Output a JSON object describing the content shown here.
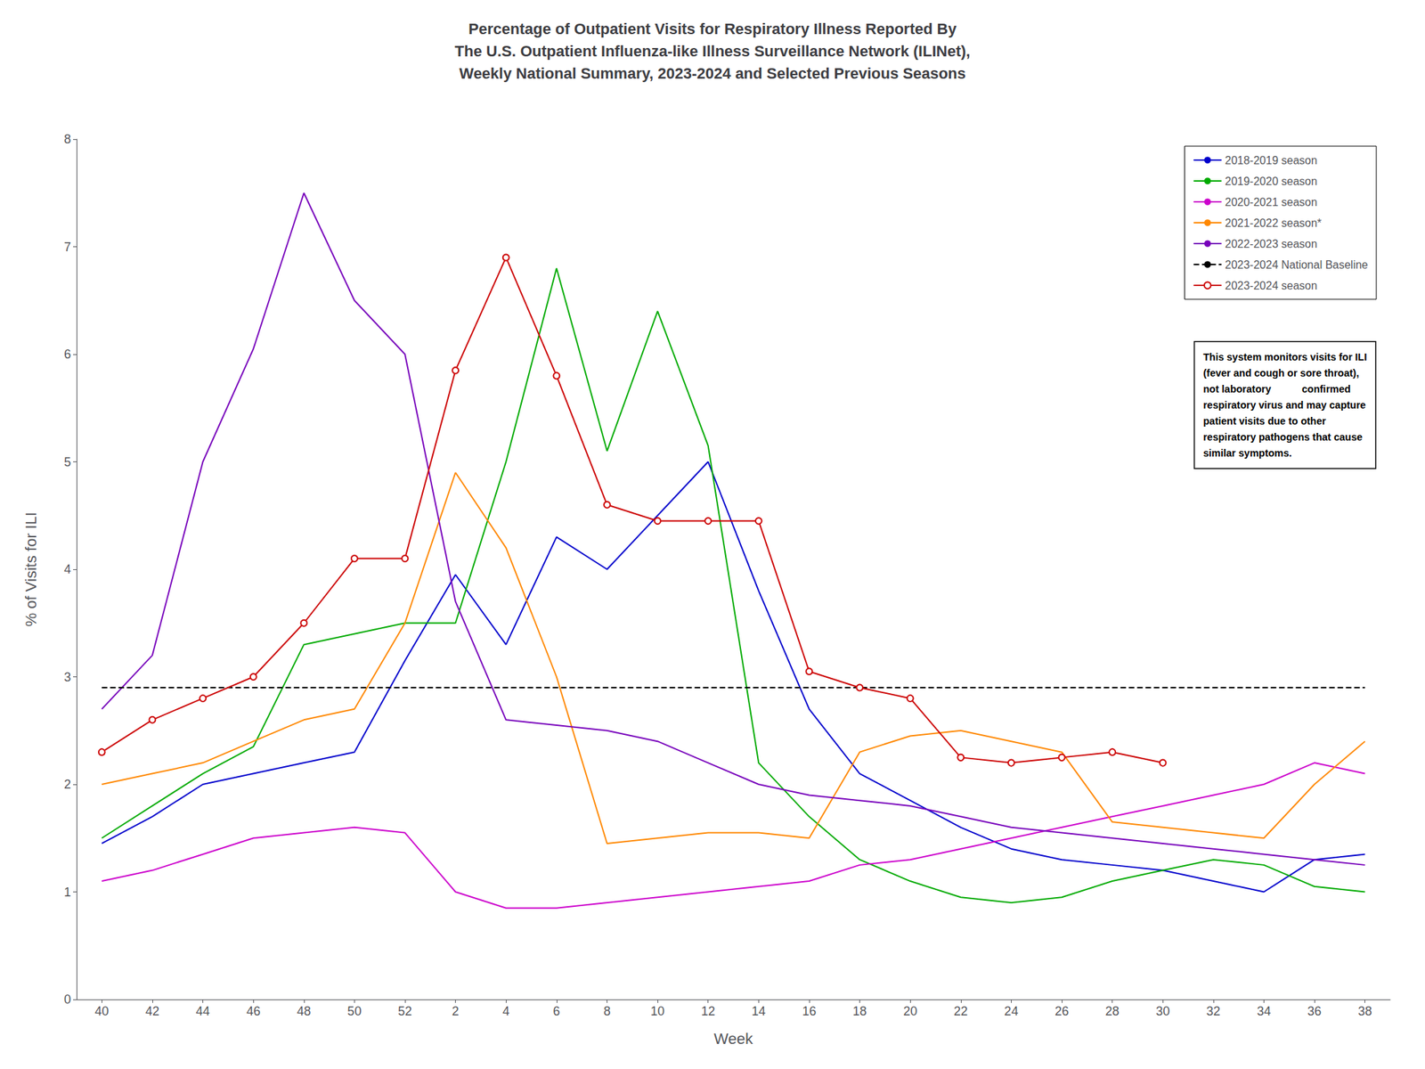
{
  "chart_data": {
    "type": "line",
    "title": "Percentage of Outpatient Visits for Respiratory Illness Reported By\nThe U.S. Outpatient Influenza-like Illness Surveillance Network (ILINet),\nWeekly National Summary, 2023-2024 and Selected Previous Seasons",
    "xlabel": "Week",
    "ylabel": "% of Visits for ILI",
    "annotation": "This system monitors visits for ILI\n(fever and cough or sore throat),\nnot laboratory           confirmed\nrespiratory virus and may capture\npatient visits due to other\nrespiratory pathogens that cause\nsimilar symptoms.",
    "categories": [
      "40",
      "42",
      "44",
      "46",
      "48",
      "50",
      "52",
      "2",
      "4",
      "6",
      "8",
      "10",
      "12",
      "14",
      "16",
      "18",
      "20",
      "22",
      "24",
      "26",
      "28",
      "30",
      "32",
      "34",
      "36",
      "38"
    ],
    "series": [
      {
        "name": "2018-2019 season",
        "color": "#0000CC",
        "values": [
          1.45,
          1.7,
          2.0,
          2.1,
          2.2,
          2.3,
          3.15,
          3.95,
          3.3,
          4.3,
          4.0,
          4.5,
          5.0,
          3.8,
          2.7,
          2.1,
          1.85,
          1.6,
          1.4,
          1.3,
          1.25,
          1.2,
          1.1,
          1.0,
          1.3,
          1.35
        ]
      },
      {
        "name": "2019-2020 season",
        "color": "#00AA00",
        "values": [
          1.5,
          1.8,
          2.1,
          2.35,
          3.3,
          3.4,
          3.5,
          3.5,
          5.0,
          6.8,
          5.1,
          6.4,
          5.15,
          2.2,
          1.7,
          1.3,
          1.1,
          0.95,
          0.9,
          0.95,
          1.1,
          1.2,
          1.3,
          1.25,
          1.05,
          1.0
        ]
      },
      {
        "name": "2020-2021 season",
        "color": "#CC00CC",
        "values": [
          1.1,
          1.2,
          1.35,
          1.5,
          1.55,
          1.6,
          1.55,
          1.0,
          0.85,
          0.85,
          0.9,
          0.95,
          1.0,
          1.05,
          1.1,
          1.25,
          1.3,
          1.4,
          1.5,
          1.6,
          1.7,
          1.8,
          1.9,
          2.0,
          2.2,
          2.1
        ]
      },
      {
        "name": "2021-2022 season*",
        "color": "#FF8800",
        "values": [
          2.0,
          2.1,
          2.2,
          2.4,
          2.6,
          2.7,
          3.5,
          4.9,
          4.2,
          3.0,
          1.45,
          1.5,
          1.55,
          1.55,
          1.5,
          2.3,
          2.45,
          2.5,
          2.4,
          2.3,
          1.65,
          1.6,
          1.55,
          1.5,
          2.0,
          2.4
        ]
      },
      {
        "name": "2022-2023 season",
        "color": "#7700BB",
        "values": [
          2.7,
          3.2,
          5.0,
          6.05,
          7.5,
          6.5,
          6.0,
          3.7,
          2.6,
          2.55,
          2.5,
          2.4,
          2.2,
          2.0,
          1.9,
          1.85,
          1.8,
          1.7,
          1.6,
          1.55,
          1.5,
          1.45,
          1.4,
          1.35,
          1.3,
          1.25
        ]
      },
      {
        "name": "2023-2024 National Baseline",
        "color": "black",
        "line_style": "dashed",
        "values": [
          2.9,
          2.9,
          2.9,
          2.9,
          2.9,
          2.9,
          2.9,
          2.9,
          2.9,
          2.9,
          2.9,
          2.9,
          2.9,
          2.9,
          2.9,
          2.9,
          2.9,
          2.9,
          2.9,
          2.9,
          2.9,
          2.9,
          2.9,
          2.9,
          2.9,
          2.9
        ]
      },
      {
        "name": "2023-2024 season",
        "color": "#CC0000",
        "marker": "circle",
        "values": [
          2.3,
          2.6,
          2.8,
          3.0,
          3.5,
          4.1,
          4.1,
          5.85,
          6.9,
          5.8,
          4.6,
          4.45,
          4.45,
          4.45,
          3.05,
          2.9,
          2.8,
          2.25,
          2.2,
          2.25,
          2.3,
          2.2,
          null,
          null,
          null,
          null
        ]
      }
    ],
    "ylim": [
      0,
      8
    ],
    "yticks": [
      0,
      1,
      2,
      3,
      4,
      5,
      6,
      7,
      8
    ],
    "grid": false,
    "legend": "upper right"
  }
}
